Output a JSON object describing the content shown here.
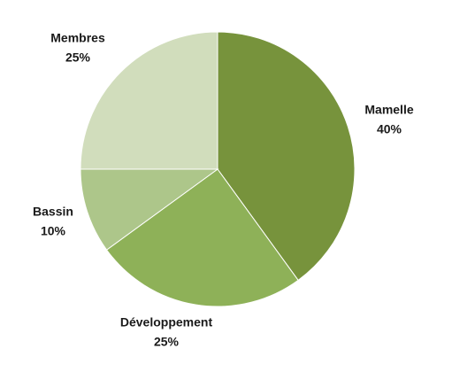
{
  "chart_data": {
    "type": "pie",
    "categories": [
      "Mamelle",
      "Développement",
      "Bassin",
      "Membres"
    ],
    "values": [
      40,
      25,
      10,
      25
    ],
    "value_labels": [
      "40%",
      "25%",
      "10%",
      "25%"
    ],
    "colors": [
      "#77933c",
      "#8eb158",
      "#adc68a",
      "#d1ddbc"
    ]
  }
}
